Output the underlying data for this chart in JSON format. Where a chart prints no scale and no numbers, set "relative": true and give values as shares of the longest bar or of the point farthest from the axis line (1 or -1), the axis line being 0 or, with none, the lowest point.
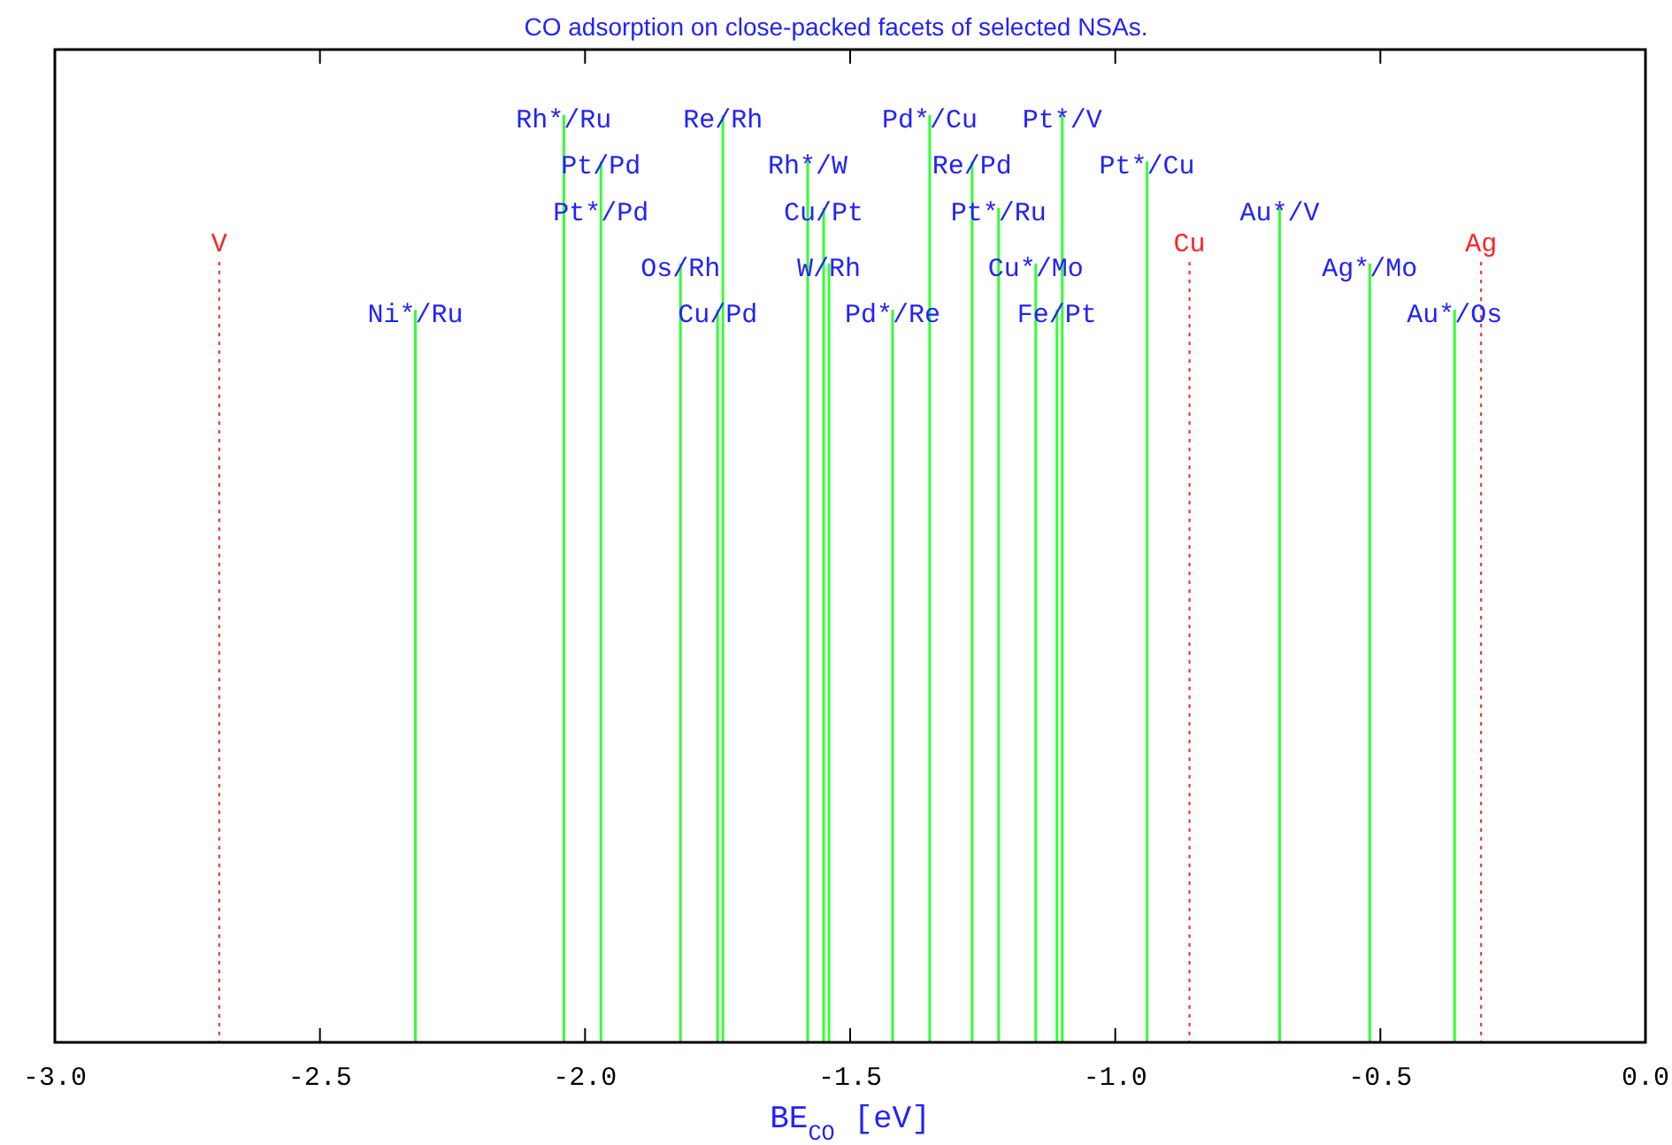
{
  "chart_data": {
    "type": "bar",
    "title": "CO adsorption on close-packed facets of selected NSAs.",
    "xlabel": "BE$_{CO}$ [eV]",
    "relative": true,
    "color": "#33ff33",
    "x": [
      -2.32,
      -2.04,
      -1.97,
      -1.82,
      -1.75,
      -1.74,
      -1.58,
      -1.55,
      -1.54,
      -1.42,
      -1.35,
      -1.27,
      -1.22,
      -1.15,
      -1.11,
      -1.1,
      -0.94,
      -0.69,
      -0.52,
      -0.36
    ],
    "values": [
      0.79,
      1,
      0.95,
      0.84,
      0.79,
      1,
      0.95,
      0.9,
      0.84,
      0.79,
      1,
      0.95,
      0.9,
      0.84,
      0.79,
      1,
      0.95,
      0.9,
      0.84,
      0.79
    ],
    "annotations": [
      {
        "text": "Ni*/Ru",
        "x": -2.32,
        "y": 0.79
      },
      {
        "text": "Rh*/Ru",
        "x": -2.04,
        "y": 1
      },
      {
        "text": "Pt/Pd",
        "x": -1.97,
        "y": 0.95
      },
      {
        "text": "Pt*/Pd",
        "x": -1.97,
        "y": 0.9
      },
      {
        "text": "Os/Rh",
        "x": -1.82,
        "y": 0.84
      },
      {
        "text": "Cu/Pd",
        "x": -1.75,
        "y": 0.79
      },
      {
        "text": "Re/Rh",
        "x": -1.74,
        "y": 1
      },
      {
        "text": "Rh*/W",
        "x": -1.58,
        "y": 0.95
      },
      {
        "text": "Cu/Pt",
        "x": -1.55,
        "y": 0.9
      },
      {
        "text": "W/Rh",
        "x": -1.54,
        "y": 0.84
      },
      {
        "text": "Pd*/Re",
        "x": -1.42,
        "y": 0.79
      },
      {
        "text": "Pd*/Cu",
        "x": -1.35,
        "y": 1
      },
      {
        "text": "Re/Pd",
        "x": -1.27,
        "y": 0.95
      },
      {
        "text": "Pt*/Ru",
        "x": -1.22,
        "y": 0.9
      },
      {
        "text": "Cu*/Mo",
        "x": -1.15,
        "y": 0.84
      },
      {
        "text": "Fe/Pt",
        "x": -1.11,
        "y": 0.79
      },
      {
        "text": "Pt*/V",
        "x": -1.1,
        "y": 1
      },
      {
        "text": "Pt*/Cu",
        "x": -0.94,
        "y": 0.95
      },
      {
        "text": "Au*/V",
        "x": -0.69,
        "y": 0.9
      },
      {
        "text": "Ag*/Mo",
        "x": -0.52,
        "y": 0.84
      },
      {
        "text": "Au*/Os",
        "x": -0.36,
        "y": 0.79
      }
    ],
    "xlim": [
      -3.0,
      0.0
    ],
    "xticks": [
      {
        "value": -3,
        "label": "-3.0"
      },
      -2.5,
      {
        "value": -2,
        "label": "-2.0"
      },
      -1.5,
      {
        "value": -1,
        "label": "-1.0"
      },
      -0.5,
      {
        "value": 0,
        "label": "0.0"
      }
    ],
    "ref_lines": [
      {
        "axis": "x",
        "value": -2.69,
        "label": "V",
        "color": "#ff2222",
        "line_style": "dotted"
      },
      {
        "axis": "x",
        "value": -0.86,
        "label": "Cu",
        "color": "#ff2222",
        "line_style": "dotted"
      },
      {
        "axis": "x",
        "value": -0.31,
        "label": "Ag",
        "color": "#ff2222",
        "line_style": "dotted"
      }
    ]
  }
}
